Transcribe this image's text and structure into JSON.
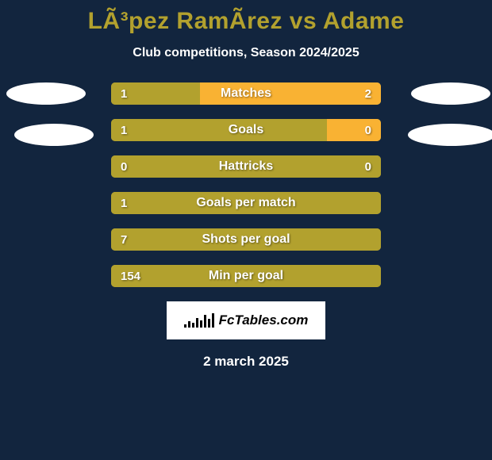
{
  "colors": {
    "background": "#12253e",
    "text": "#ffffff",
    "title": "#b2a12e",
    "bar_base": "#b2a12e",
    "accent": "#f9b233",
    "ellipse": "#ffffff",
    "logo_bg": "#ffffff"
  },
  "title": "LÃ³pez RamÃ­rez vs Adame",
  "subtitle": "Club competitions, Season 2024/2025",
  "logo_text": "FcTables.com",
  "footer_date": "2 march 2025",
  "bars": [
    {
      "label": "Matches",
      "left": "1",
      "right": "2",
      "left_pct": 33,
      "right_pct": 67,
      "accent_side": "right"
    },
    {
      "label": "Goals",
      "left": "1",
      "right": "0",
      "left_pct": 80,
      "right_pct": 20,
      "accent_side": "right"
    },
    {
      "label": "Hattricks",
      "left": "0",
      "right": "0",
      "left_pct": 100,
      "right_pct": 0,
      "accent_side": "none"
    },
    {
      "label": "Goals per match",
      "left": "1",
      "right": "",
      "left_pct": 100,
      "right_pct": 0,
      "accent_side": "none"
    },
    {
      "label": "Shots per goal",
      "left": "7",
      "right": "",
      "left_pct": 100,
      "right_pct": 0,
      "accent_side": "none"
    },
    {
      "label": "Min per goal",
      "left": "154",
      "right": "",
      "left_pct": 100,
      "right_pct": 0,
      "accent_side": "none"
    }
  ],
  "sparkline_heights": [
    4,
    8,
    6,
    12,
    9,
    16,
    11,
    18
  ]
}
